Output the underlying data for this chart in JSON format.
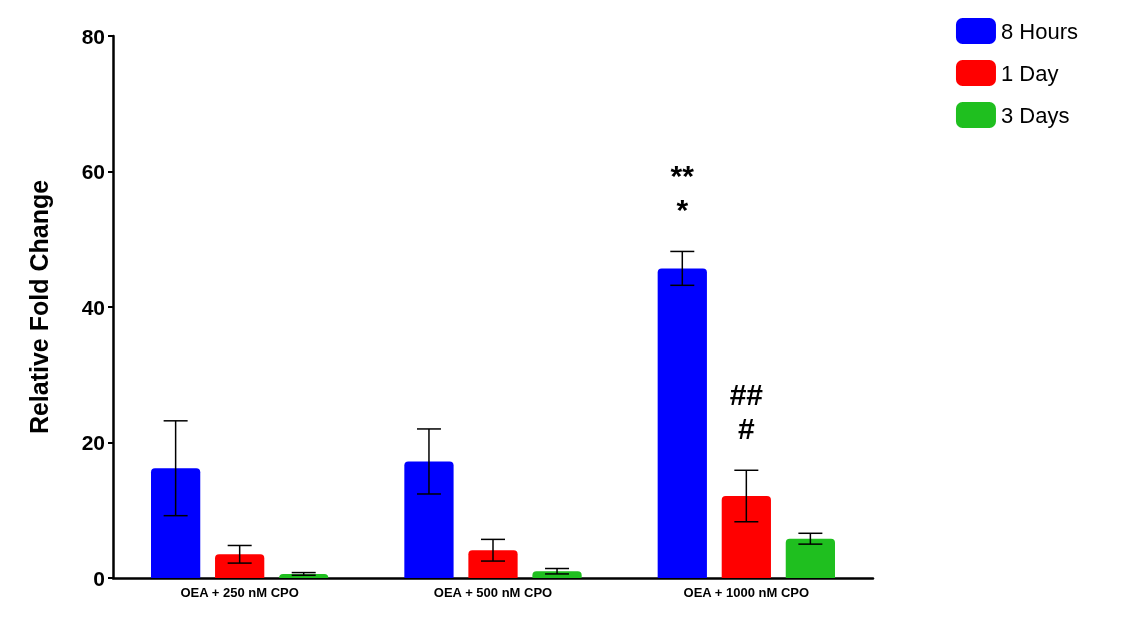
{
  "chart_data": {
    "type": "bar",
    "ylabel": "Relative Fold Change",
    "categories": [
      "OEA + 250 nM CPO",
      "OEA + 500 nM CPO",
      "OEA + 1000 nM CPO"
    ],
    "series": [
      {
        "name": "8 Hours",
        "color": "#0000ff",
        "values": [
          16.2,
          17.2,
          45.7
        ],
        "errors": [
          7,
          4.8,
          2.5
        ]
      },
      {
        "name": "1 Day",
        "color": "#ff0000",
        "values": [
          3.5,
          4.1,
          12.1
        ],
        "errors": [
          1.3,
          1.6,
          3.8
        ]
      },
      {
        "name": "3 Days",
        "color": "#1fbf1f",
        "values": [
          0.6,
          1.0,
          5.8
        ],
        "errors": [
          0.2,
          0.4,
          0.8
        ]
      }
    ],
    "ylim": [
      0,
      80
    ],
    "yticks": [
      0,
      20,
      40,
      60,
      80
    ],
    "grid": false,
    "legend": "top right",
    "annotations": [
      "**",
      "*",
      "##",
      "#"
    ]
  }
}
